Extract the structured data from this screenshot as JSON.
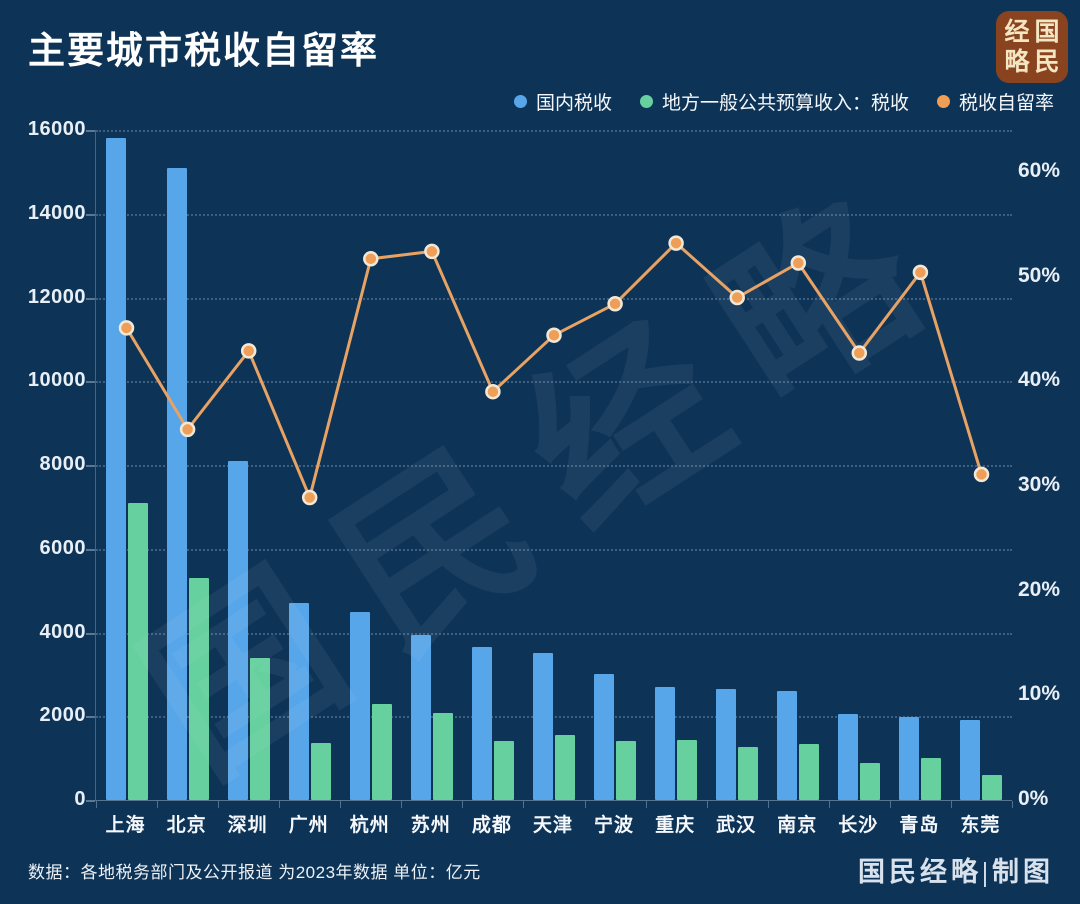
{
  "title": "主要城市税收自留率",
  "logo": {
    "tl": "经",
    "tr": "国",
    "bl": "略",
    "br": "民"
  },
  "legend": [
    {
      "label": "国内税收",
      "color": "#58a6ea"
    },
    {
      "label": "地方一般公共预算收入：税收",
      "color": "#66d19e"
    },
    {
      "label": "税收自留率",
      "color": "#ee9e56"
    }
  ],
  "watermark": "国民经略",
  "footer": {
    "source": "数据：各地税务部门及公开报道 为2023年数据 单位：亿元",
    "credit": "国民经略|制图"
  },
  "colors": {
    "background": "#0d3356",
    "bar_blue": "#58a6ea",
    "bar_green": "#66d19e",
    "line_orange": "#e8a264",
    "point_fill": "#ee9e56",
    "point_ring": "#f1e8d8"
  },
  "chart_data": {
    "type": "bar+line",
    "title": "主要城市税收自留率",
    "unit": "亿元",
    "categories": [
      "上海",
      "北京",
      "深圳",
      "广州",
      "杭州",
      "苏州",
      "成都",
      "天津",
      "宁波",
      "重庆",
      "武汉",
      "南京",
      "长沙",
      "青岛",
      "东莞"
    ],
    "series": [
      {
        "name": "国内税收",
        "type": "bar",
        "axis": "left",
        "color": "#58a6ea",
        "values": [
          15800,
          15100,
          8100,
          4700,
          4500,
          3950,
          3650,
          3500,
          3000,
          2700,
          2650,
          2600,
          2050,
          1980,
          1900
        ]
      },
      {
        "name": "地方一般公共预算收入：税收",
        "type": "bar",
        "axis": "left",
        "color": "#66d19e",
        "values": [
          7100,
          5300,
          3400,
          1350,
          2300,
          2070,
          1420,
          1550,
          1420,
          1440,
          1270,
          1340,
          875,
          1000,
          590
        ]
      },
      {
        "name": "税收自留率",
        "type": "line",
        "axis": "right",
        "color": "#ee9e56",
        "values_percent": [
          45.1,
          35.4,
          42.9,
          28.9,
          51.7,
          52.4,
          39.0,
          44.4,
          47.4,
          53.2,
          48.0,
          51.3,
          42.7,
          50.4,
          31.1
        ]
      }
    ],
    "left_axis": {
      "min": 0,
      "max": 16000,
      "ticks": [
        0,
        2000,
        4000,
        6000,
        8000,
        10000,
        12000,
        14000,
        16000
      ]
    },
    "right_axis": {
      "min": 0,
      "plot_top_value": 64,
      "ticks": [
        0,
        10,
        20,
        30,
        40,
        50,
        60
      ],
      "suffix": "%"
    },
    "grid": "horizontal-dotted",
    "legend_position": "top-right"
  }
}
